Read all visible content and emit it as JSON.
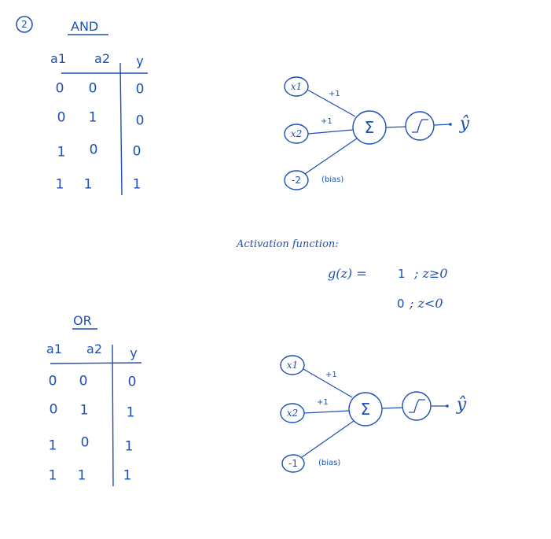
{
  "section_number": "2",
  "and_table": {
    "title": "AND",
    "headers": [
      "a1",
      "a2",
      "y"
    ],
    "rows": [
      [
        "0",
        "0",
        "0"
      ],
      [
        "0",
        "1",
        "0"
      ],
      [
        "1",
        "0",
        "0"
      ],
      [
        "1",
        "1",
        "1"
      ]
    ]
  },
  "or_table": {
    "title": "OR",
    "headers": [
      "a1",
      "a2",
      "y"
    ],
    "rows": [
      [
        "0",
        "0",
        "0"
      ],
      [
        "0",
        "1",
        "1"
      ],
      [
        "1",
        "0",
        "1"
      ],
      [
        "1",
        "1",
        "1"
      ]
    ]
  },
  "and_perceptron": {
    "input1": "x1",
    "input2": "x2",
    "bias_value": "-2",
    "weight1": "+1",
    "weight2": "+1",
    "bias_note": "(bias)",
    "sum_symbol": "Σ",
    "output": "ŷ"
  },
  "or_perceptron": {
    "input1": "x1",
    "input2": "x2",
    "bias_value": "-1",
    "weight1": "+1",
    "weight2": "+1",
    "bias_note": "(bias)",
    "sum_symbol": "Σ",
    "output": "ŷ"
  },
  "activation": {
    "heading": "Activation function:",
    "lhs": "g(z) =",
    "case1_value": "1",
    "case1_condition": "; z≥0",
    "case2_value": "0",
    "case2_condition": "; z<0"
  },
  "colors": {
    "ink": "#1d4fb5"
  }
}
